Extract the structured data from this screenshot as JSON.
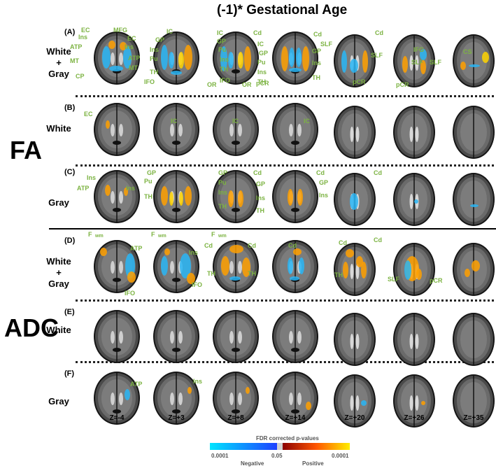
{
  "title": "(-1)* Gestational Age",
  "sections": {
    "fa": "FA",
    "adc": "ADC"
  },
  "rows": [
    {
      "panel": "(A)",
      "label_lines": [
        "White",
        "+",
        "Gray"
      ]
    },
    {
      "panel": "(B)",
      "label_lines": [
        "White"
      ]
    },
    {
      "panel": "(C)",
      "label_lines": [
        "Gray"
      ]
    },
    {
      "panel": "(D)",
      "label_lines": [
        "White",
        "+",
        "Gray"
      ]
    },
    {
      "panel": "(E)",
      "label_lines": [
        "White"
      ]
    },
    {
      "panel": "(F)",
      "label_lines": [
        "Gray"
      ]
    }
  ],
  "z_labels": [
    "Z=-4",
    "Z=+3",
    "Z=+8",
    "Z=+14",
    "Z=+20",
    "Z=+26",
    "Z=+35"
  ],
  "colorbar": {
    "title": "FDR corrected  p-values",
    "left_value": "0.0001",
    "mid_value": "0.05",
    "right_value": "0.0001",
    "negative_label": "Negative",
    "positive_label": "Positive"
  },
  "colors": {
    "label_green": "#7cb342",
    "negative": "#29b6f6",
    "positive": "#ffa000"
  },
  "anatomical_labels": {
    "A": [
      "EC",
      "MFG",
      "Ins",
      "EC",
      "ATP",
      "Ins",
      "ATP",
      "MT",
      "MT",
      "CP",
      "IC",
      "GP",
      "Ins",
      "Pu",
      "TH",
      "IFO",
      "IC",
      "GP",
      "Pu",
      "Ins",
      "TH",
      "IFO",
      "OR",
      "Cd",
      "IC",
      "GP",
      "Pu",
      "Ins",
      "TH",
      "pCR",
      "OR",
      "Cd",
      "SLF",
      "GP",
      "Ins",
      "TH",
      "Cd",
      "SLF",
      "pCR",
      "IFG",
      "SLF",
      "pCR",
      "CS",
      "SLF"
    ],
    "B": [
      "EC",
      "IC",
      "IC",
      "IC"
    ],
    "C": [
      "Ins",
      "ATP",
      "Ins",
      "GP",
      "Pu",
      "TH",
      "GP",
      "Pu",
      "Ins",
      "TH",
      "Cd",
      "GP",
      "Ins",
      "TH",
      "Cd",
      "GP",
      "Ins",
      "Cd"
    ],
    "D": [
      "F",
      "wm",
      "ATP",
      "IFO",
      "F",
      "wm",
      "Ins",
      "IFO",
      "F",
      "wm",
      "Cd",
      "Cd",
      "TH",
      "TH",
      "Cd",
      "TH",
      "Cd",
      "Cd",
      "SLF",
      "pCR"
    ],
    "F": [
      "ATP",
      "Ins"
    ]
  }
}
